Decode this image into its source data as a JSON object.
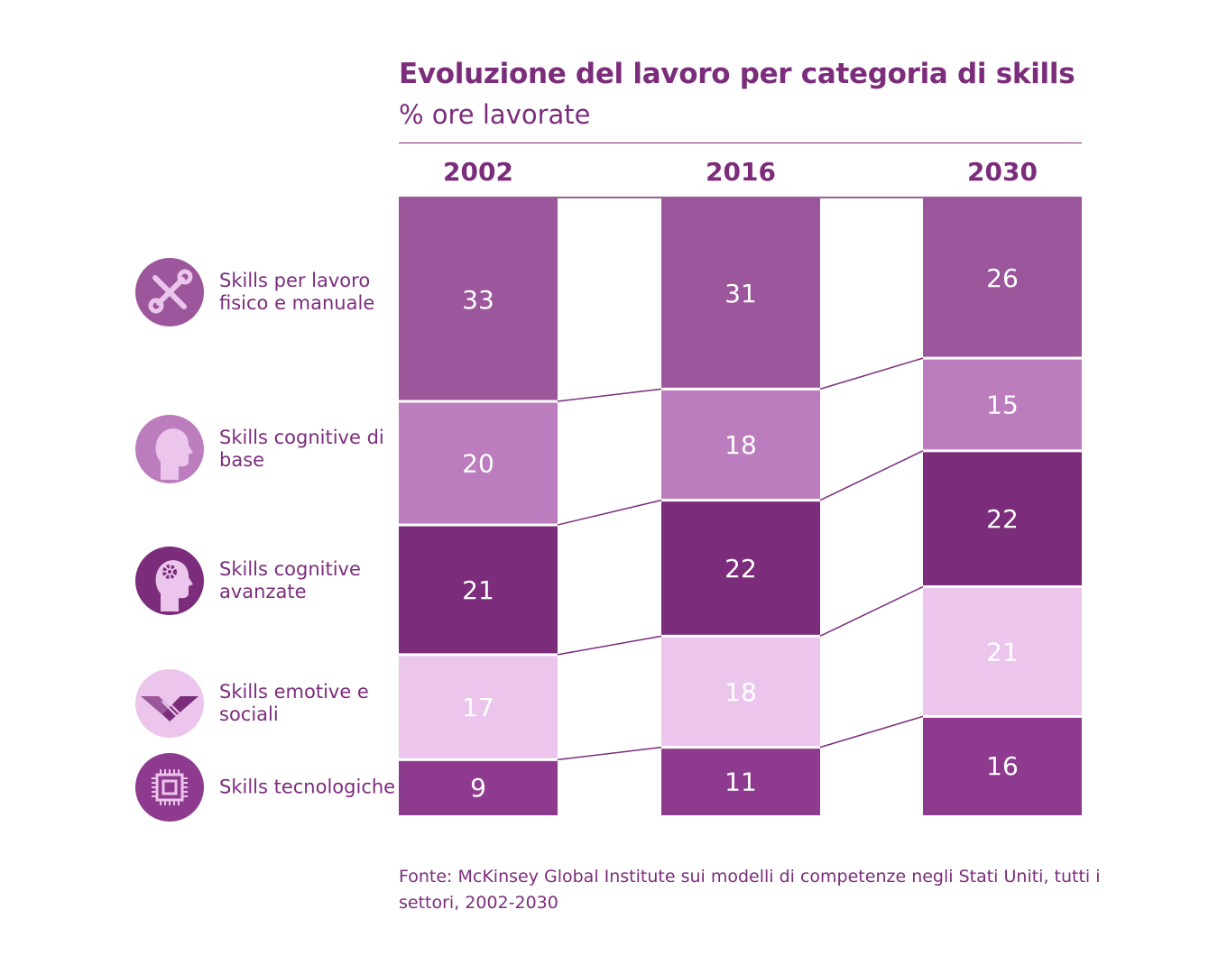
{
  "title": "Evoluzione del lavoro per categoria di skills",
  "subtitle": "% ore lavorate",
  "source": "Fonte: McKinsey Global Institute sui modelli di competenze negli Stati Uniti, tutti i settori, 2002-2030",
  "colors": {
    "text": "#7b2d7b",
    "fisico_manuale": "#9c569c",
    "cognitive_base": "#bb7dbd",
    "cognitive_avanzate": "#7b2d7b",
    "emotive_sociali": "#ebc5eb",
    "tecnologiche": "#8e3a8e"
  },
  "legend": [
    {
      "label": "Skills per lavoro fisico e manuale",
      "icon": "wrench-screwdriver-icon",
      "color": "#9c569c"
    },
    {
      "label": "Skills cognitive di base",
      "icon": "head-profile-icon",
      "color": "#bb7dbd"
    },
    {
      "label": "Skills cognitive avanzate",
      "icon": "head-gear-icon",
      "color": "#7b2d7b"
    },
    {
      "label": "Skills emotive e sociali",
      "icon": "handshake-icon",
      "color": "#ebc5eb"
    },
    {
      "label": "Skills tecnologiche",
      "icon": "microchip-icon",
      "color": "#8e3a8e"
    }
  ],
  "chart_data": {
    "type": "bar",
    "stacked": true,
    "title": "Evoluzione del lavoro per categoria di skills",
    "subtitle": "% ore lavorate",
    "categories": [
      "2002",
      "2016",
      "2030"
    ],
    "series": [
      {
        "name": "Skills per lavoro fisico e manuale",
        "values": [
          33,
          31,
          26
        ],
        "color": "#9c569c"
      },
      {
        "name": "Skills cognitive di base",
        "values": [
          20,
          18,
          15
        ],
        "color": "#bb7dbd"
      },
      {
        "name": "Skills cognitive avanzate",
        "values": [
          21,
          22,
          22
        ],
        "color": "#7b2d7b"
      },
      {
        "name": "Skills emotive e sociali",
        "values": [
          17,
          18,
          21
        ],
        "color": "#ebc5eb"
      },
      {
        "name": "Skills tecnologiche",
        "values": [
          9,
          11,
          16
        ],
        "color": "#8e3a8e"
      }
    ],
    "value_units": "% ore lavorate",
    "legend_position": "left",
    "grid": false
  }
}
